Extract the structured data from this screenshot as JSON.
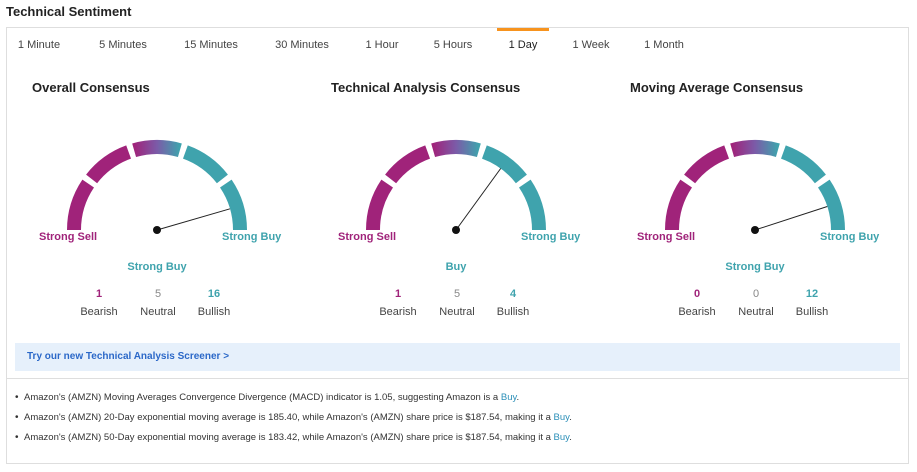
{
  "header": {
    "title": "Technical Sentiment"
  },
  "tabs": [
    {
      "label": "1 Minute",
      "active": false
    },
    {
      "label": "5 Minutes",
      "active": false
    },
    {
      "label": "15 Minutes",
      "active": false
    },
    {
      "label": "30 Minutes",
      "active": false
    },
    {
      "label": "1 Hour",
      "active": false
    },
    {
      "label": "5 Hours",
      "active": false
    },
    {
      "label": "1 Day",
      "active": true
    },
    {
      "label": "1 Week",
      "active": false
    },
    {
      "label": "1 Month",
      "active": false
    }
  ],
  "colors": {
    "sell": "#a0237a",
    "buy": "#3fa3ad",
    "neutral": "#7b5ba8",
    "tab_accent": "#f7931e",
    "link": "#2b68c8"
  },
  "panels": [
    {
      "title": "Overall Consensus",
      "left_label": "Strong Sell",
      "right_label": "Strong Buy",
      "verdict": "Strong Buy",
      "needle_fraction": 0.91,
      "counts": [
        {
          "value": "1",
          "label": "Bearish"
        },
        {
          "value": "5",
          "label": "Neutral"
        },
        {
          "value": "16",
          "label": "Bullish"
        }
      ]
    },
    {
      "title": "Technical Analysis Consensus",
      "left_label": "Strong Sell",
      "right_label": "Strong Buy",
      "verdict": "Buy",
      "needle_fraction": 0.7,
      "counts": [
        {
          "value": "1",
          "label": "Bearish"
        },
        {
          "value": "5",
          "label": "Neutral"
        },
        {
          "value": "4",
          "label": "Bullish"
        }
      ]
    },
    {
      "title": "Moving Average Consensus",
      "left_label": "Strong Sell",
      "right_label": "Strong Buy",
      "verdict": "Strong Buy",
      "needle_fraction": 0.9,
      "counts": [
        {
          "value": "0",
          "label": "Bearish"
        },
        {
          "value": "0",
          "label": "Neutral"
        },
        {
          "value": "12",
          "label": "Bullish"
        }
      ]
    }
  ],
  "screener": {
    "link": "Try our new Technical Analysis Screener >"
  },
  "notes": [
    {
      "text": "Amazon's (AMZN) Moving Averages Convergence Divergence (MACD) indicator is 1.05, suggesting Amazon is a ",
      "signal": "Buy",
      "end": "."
    },
    {
      "text": "Amazon's (AMZN) 20-Day exponential moving average is 185.40, while Amazon's (AMZN) share price is $187.54, making it a ",
      "signal": "Buy",
      "end": "."
    },
    {
      "text": "Amazon's (AMZN) 50-Day exponential moving average is 183.42, while Amazon's (AMZN) share price is $187.54, making it a ",
      "signal": "Buy",
      "end": "."
    }
  ],
  "bullet": "•"
}
